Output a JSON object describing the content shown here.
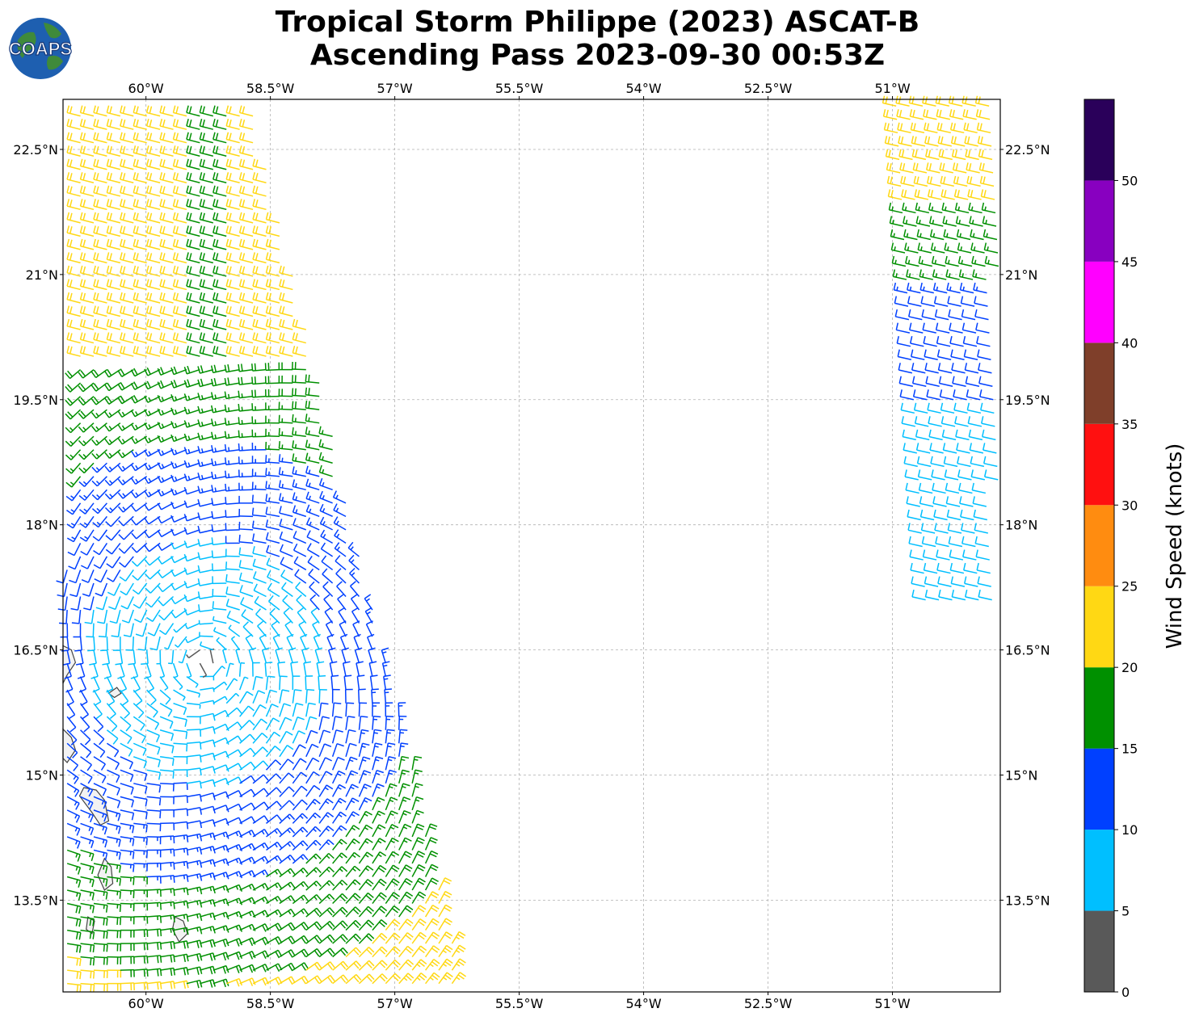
{
  "title": {
    "line1": "Tropical Storm Philippe (2023) ASCAT-B",
    "line2": "Ascending Pass 2023-09-30 00:53Z"
  },
  "logo": {
    "text": "COAPS",
    "icon": "globe-logo-icon"
  },
  "map": {
    "lon_range": [
      -61.0,
      -49.7
    ],
    "lat_range": [
      12.4,
      23.1
    ],
    "gridlines": true,
    "lon_ticks": [
      -60.0,
      -58.5,
      -57.0,
      -55.5,
      -54.0,
      -52.5,
      -51.0
    ],
    "lat_ticks": [
      13.5,
      15.0,
      16.5,
      18.0,
      19.5,
      21.0,
      22.5
    ],
    "lon_tick_labels": [
      "60°W",
      "58.5°W",
      "57°W",
      "55.5°W",
      "54°W",
      "52.5°W",
      "51°W"
    ],
    "lat_tick_labels": [
      "13.5°N",
      "15°N",
      "16.5°N",
      "18°N",
      "19.5°N",
      "21°N",
      "22.5°N"
    ],
    "storm_center": {
      "lon": -59.3,
      "lat": 16.35
    },
    "colors": {
      "land_fill": "#f2f2f2",
      "coast": "#444444",
      "grid": "#b0b0b0"
    }
  },
  "colorbar": {
    "label": "Wind Speed (knots)",
    "tick_labels": [
      "0",
      "5",
      "10",
      "15",
      "20",
      "25",
      "30",
      "35",
      "40",
      "45",
      "50"
    ],
    "bins": [
      {
        "min": 0,
        "max": 5,
        "color": "#595959"
      },
      {
        "min": 5,
        "max": 10,
        "color": "#00bfff"
      },
      {
        "min": 10,
        "max": 15,
        "color": "#0040ff"
      },
      {
        "min": 15,
        "max": 20,
        "color": "#009000"
      },
      {
        "min": 20,
        "max": 25,
        "color": "#ffd814"
      },
      {
        "min": 25,
        "max": 30,
        "color": "#ff8c10"
      },
      {
        "min": 30,
        "max": 35,
        "color": "#ff1010"
      },
      {
        "min": 35,
        "max": 40,
        "color": "#7f3f2a"
      },
      {
        "min": 40,
        "max": 45,
        "color": "#ff00ff"
      },
      {
        "min": 45,
        "max": 50,
        "color": "#8800c0"
      },
      {
        "min": 50,
        "max": 55,
        "color": "#2a005a"
      }
    ]
  }
}
